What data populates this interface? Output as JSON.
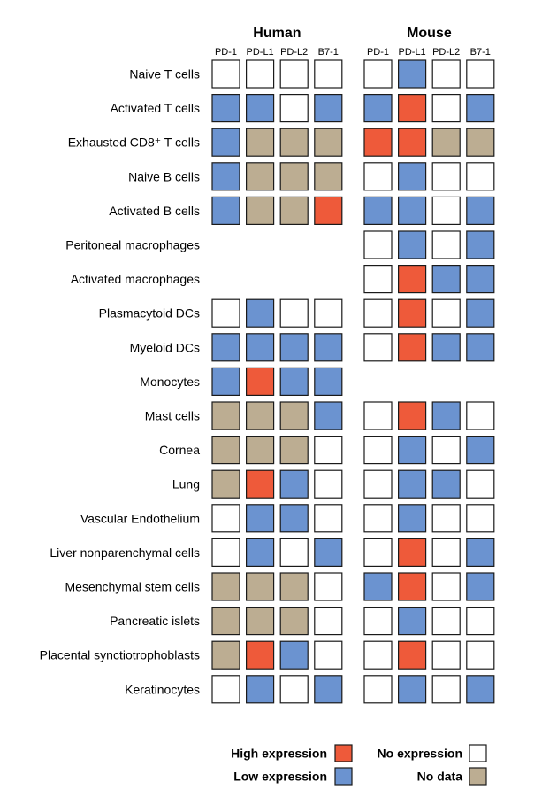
{
  "chart_data": {
    "type": "heatmap",
    "panels": [
      {
        "title": "Human",
        "columns": [
          "PD-1",
          "PD-L1",
          "PD-L2",
          "B7-1"
        ]
      },
      {
        "title": "Mouse",
        "columns": [
          "PD-1",
          "PD-L1",
          "PD-L2",
          "B7-1"
        ]
      }
    ],
    "rows": [
      "Naive T cells",
      "Activated T cells",
      "Exhausted CD8⁺ T cells",
      "Naive B cells",
      "Activated B cells",
      "Peritoneal macrophages",
      "Activated macrophages",
      "Plasmacytoid DCs",
      "Myeloid DCs",
      "Monocytes",
      "Mast cells",
      "Cornea",
      "Lung",
      "Vascular Endothelium",
      "Liver nonparenchymal cells",
      "Mesenchymal stem cells",
      "Pancreatic islets",
      "Placental synctiotrophoblasts",
      "Keratinocytes"
    ],
    "values": {
      "Human": [
        [
          "none",
          "none",
          "none",
          "none"
        ],
        [
          "low",
          "low",
          "none",
          "low"
        ],
        [
          "low",
          "nodata",
          "nodata",
          "nodata"
        ],
        [
          "low",
          "nodata",
          "nodata",
          "nodata"
        ],
        [
          "low",
          "nodata",
          "nodata",
          "high"
        ],
        null,
        null,
        [
          "none",
          "low",
          "none",
          "none"
        ],
        [
          "low",
          "low",
          "low",
          "low"
        ],
        [
          "low",
          "high",
          "low",
          "low"
        ],
        [
          "nodata",
          "nodata",
          "nodata",
          "low"
        ],
        [
          "nodata",
          "nodata",
          "nodata",
          "none"
        ],
        [
          "nodata",
          "high",
          "low",
          "none"
        ],
        [
          "none",
          "low",
          "low",
          "none"
        ],
        [
          "none",
          "low",
          "none",
          "low"
        ],
        [
          "nodata",
          "nodata",
          "nodata",
          "none"
        ],
        [
          "nodata",
          "nodata",
          "nodata",
          "none"
        ],
        [
          "nodata",
          "high",
          "low",
          "none"
        ],
        [
          "none",
          "low",
          "none",
          "low"
        ]
      ],
      "Mouse": [
        [
          "none",
          "low",
          "none",
          "none"
        ],
        [
          "low",
          "high",
          "none",
          "low"
        ],
        [
          "high",
          "high",
          "nodata",
          "nodata"
        ],
        [
          "none",
          "low",
          "none",
          "none"
        ],
        [
          "low",
          "low",
          "none",
          "low"
        ],
        [
          "none",
          "low",
          "none",
          "low"
        ],
        [
          "none",
          "high",
          "low",
          "low"
        ],
        [
          "none",
          "high",
          "none",
          "low"
        ],
        [
          "none",
          "high",
          "low",
          "low"
        ],
        null,
        [
          "none",
          "high",
          "low",
          "none"
        ],
        [
          "none",
          "low",
          "none",
          "low"
        ],
        [
          "none",
          "low",
          "low",
          "none"
        ],
        [
          "none",
          "low",
          "none",
          "none"
        ],
        [
          "none",
          "high",
          "none",
          "low"
        ],
        [
          "low",
          "high",
          "none",
          "low"
        ],
        [
          "none",
          "low",
          "none",
          "none"
        ],
        [
          "none",
          "high",
          "none",
          "none"
        ],
        [
          "none",
          "low",
          "none",
          "low"
        ]
      ]
    },
    "legend": [
      {
        "key": "high",
        "label": "High expression"
      },
      {
        "key": "none",
        "label": "No expression"
      },
      {
        "key": "low",
        "label": "Low expression"
      },
      {
        "key": "nodata",
        "label": "No data"
      }
    ],
    "colors": {
      "high": "#ee5a3a",
      "low": "#6b93d0",
      "none": "#ffffff",
      "nodata": "#bcad92",
      "border": "#1a1a1a"
    },
    "legend_position": "bottom"
  }
}
